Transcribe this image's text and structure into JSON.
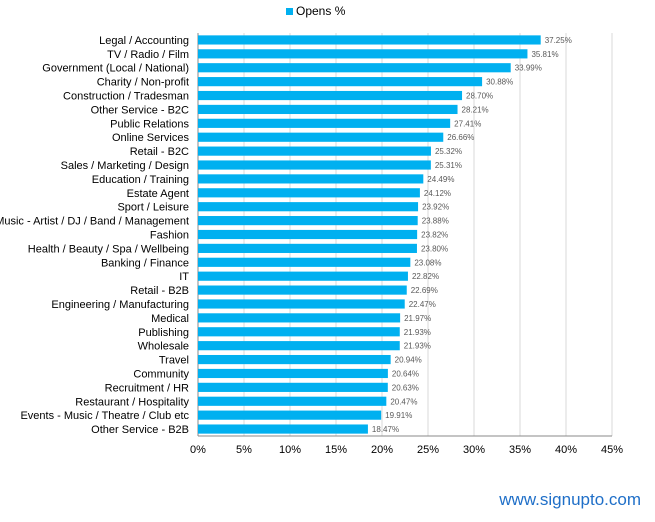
{
  "chart_data": {
    "type": "bar",
    "orientation": "horizontal",
    "title": "",
    "xlabel": "",
    "ylabel": "",
    "xlim": [
      0,
      45
    ],
    "x_ticks": [
      "0%",
      "5%",
      "10%",
      "15%",
      "20%",
      "25%",
      "30%",
      "35%",
      "40%",
      "45%"
    ],
    "grid": true,
    "legend_position": "top-center",
    "bar_color": "#00b0f0",
    "series": [
      {
        "name": "Opens %",
        "categories": [
          "Legal / Accounting",
          "TV / Radio / Film",
          "Government (Local / National)",
          "Charity / Non-profit",
          "Construction / Tradesman",
          "Other Service - B2C",
          "Public Relations",
          "Online Services",
          "Retail - B2C",
          "Sales / Marketing / Design",
          "Education / Training",
          "Estate Agent",
          "Sport / Leisure",
          "Music - Artist / DJ / Band / Management",
          "Fashion",
          "Health / Beauty / Spa / Wellbeing",
          "Banking / Finance",
          "IT",
          "Retail - B2B",
          "Engineering / Manufacturing",
          "Medical",
          "Publishing",
          "Wholesale",
          "Travel",
          "Community",
          "Recruitment / HR",
          "Restaurant / Hospitality",
          "Events - Music / Theatre / Club etc",
          "Other Service - B2B"
        ],
        "values": [
          37.25,
          35.81,
          33.99,
          30.88,
          28.7,
          28.21,
          27.41,
          26.66,
          25.32,
          25.31,
          24.49,
          24.12,
          23.92,
          23.88,
          23.82,
          23.8,
          23.08,
          22.82,
          22.69,
          22.47,
          21.97,
          21.93,
          21.93,
          20.94,
          20.64,
          20.63,
          20.47,
          19.91,
          18.47
        ],
        "value_labels": [
          "37.25%",
          "35.81%",
          "33.99%",
          "30.88%",
          "28.70%",
          "28.21%",
          "27.41%",
          "26.66%",
          "25.32%",
          "25.31%",
          "24.49%",
          "24.12%",
          "23.92%",
          "23.88%",
          "23.82%",
          "23.80%",
          "23.08%",
          "22.82%",
          "22.69%",
          "22.47%",
          "21.97%",
          "21.93%",
          "21.93%",
          "20.94%",
          "20.64%",
          "20.63%",
          "20.47%",
          "19.91%",
          "18.47%"
        ]
      }
    ]
  },
  "footer": {
    "url": "www.signupto.com"
  }
}
